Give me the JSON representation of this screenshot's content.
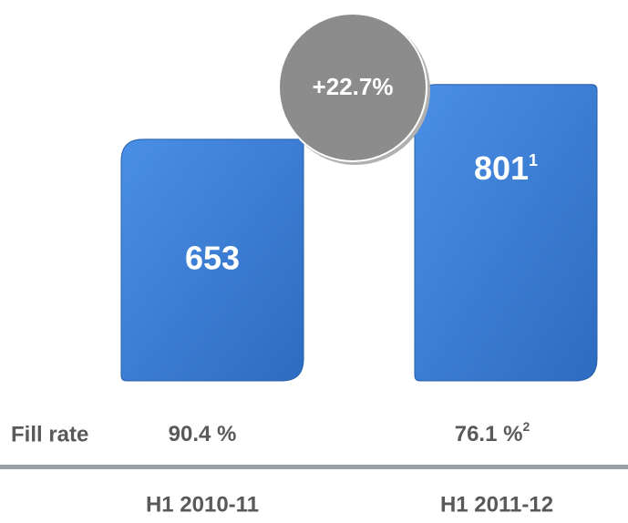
{
  "chart_data": {
    "type": "bar",
    "categories": [
      "H1 2010-11",
      "H1 2011-12"
    ],
    "values": [
      653,
      801
    ],
    "value_footnotes": [
      null,
      "1"
    ],
    "color": "#3b7fd6",
    "annotation": "+22.7%",
    "fill_rate": {
      "label": "Fill rate",
      "values": [
        "90.4 %",
        "76.1 %"
      ],
      "footnotes": [
        null,
        "2"
      ]
    }
  }
}
